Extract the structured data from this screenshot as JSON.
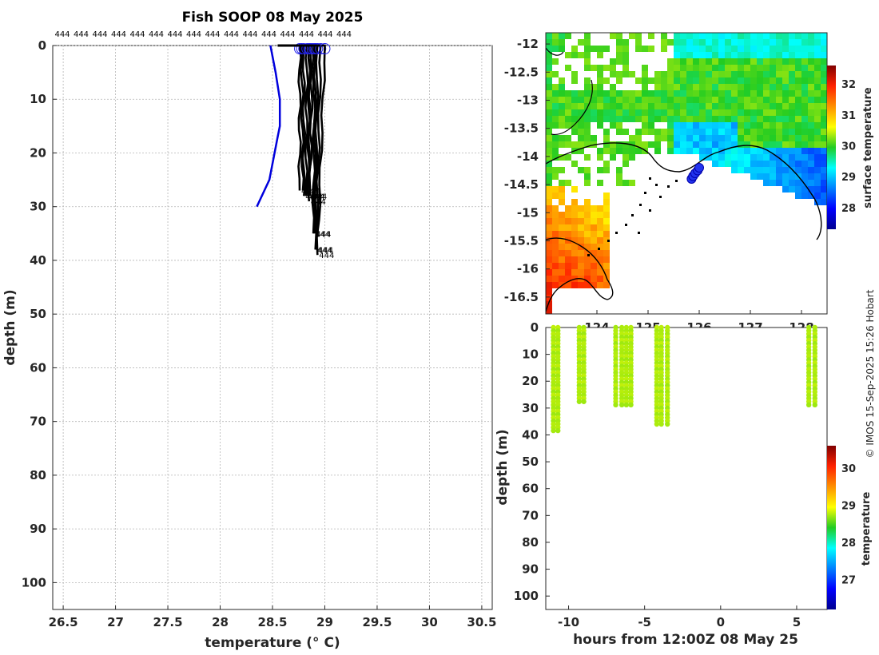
{
  "title": "Fish SOOP 08 May 2025",
  "credit": "© IMOS 15-Sep-2025 15:26 Hobart",
  "profile_label": "444",
  "colors": {
    "profile": "#000000",
    "climatology": "#0000dd",
    "marker": "#2222ee",
    "coast": "#000000"
  },
  "chart_data": [
    {
      "type": "line",
      "name": "temperature-depth profiles",
      "xlabel": "temperature (° C)",
      "ylabel": "depth (m)",
      "xlim": [
        26.4,
        30.6
      ],
      "ylim": [
        105,
        0
      ],
      "xticks": [
        "26.5",
        "27",
        "27.5",
        "28",
        "28.5",
        "29",
        "29.5",
        "30",
        "30.5"
      ],
      "yticks": [
        "0",
        "10",
        "20",
        "30",
        "40",
        "50",
        "60",
        "70",
        "80",
        "90",
        "100"
      ],
      "grid": true,
      "top_labels": [
        "444",
        "444",
        "444",
        "444",
        "444",
        "444",
        "444",
        "444",
        "444",
        "444",
        "444",
        "444",
        "444",
        "444",
        "444",
        "444"
      ],
      "climatology": {
        "temperature": [
          28.48,
          28.53,
          28.57,
          28.57,
          28.55,
          28.52,
          28.47,
          28.35
        ],
        "depth": [
          0,
          5,
          10,
          15,
          17,
          20,
          25,
          30
        ]
      },
      "profiles": [
        {
          "t0": 28.76,
          "tb": 28.76,
          "d": 27
        },
        {
          "t0": 28.78,
          "tb": 28.79,
          "d": 27
        },
        {
          "t0": 28.8,
          "tb": 28.8,
          "d": 28
        },
        {
          "t0": 28.83,
          "tb": 28.82,
          "d": 28
        },
        {
          "t0": 28.85,
          "tb": 28.84,
          "d": 28
        },
        {
          "t0": 28.86,
          "tb": 28.85,
          "d": 29
        },
        {
          "t0": 28.88,
          "tb": 28.86,
          "d": 28
        },
        {
          "t0": 28.9,
          "tb": 28.89,
          "d": 35
        },
        {
          "t0": 28.91,
          "tb": 28.9,
          "d": 35
        },
        {
          "t0": 28.93,
          "tb": 28.91,
          "d": 38
        },
        {
          "t0": 28.96,
          "tb": 28.92,
          "d": 38
        },
        {
          "t0": 29.0,
          "tb": 28.93,
          "d": 39
        }
      ]
    },
    {
      "type": "heatmap",
      "name": "surface temperature map",
      "colorbar_label": "surface temperature",
      "lat_ticks": [
        "-12",
        "-12.5",
        "-13",
        "-13.5",
        "-14",
        "-14.5",
        "-15",
        "-15.5",
        "-16",
        "-16.5"
      ],
      "lon_ticks": [
        "124",
        "125",
        "126",
        "127",
        "128"
      ],
      "lat_range": [
        -16.8,
        -11.8
      ],
      "lon_range": [
        123.0,
        128.5
      ],
      "colorbar_ticks": [
        "28",
        "29",
        "30",
        "31",
        "32"
      ],
      "colorbar_range": [
        27.3,
        32.6
      ],
      "track": {
        "lon": [
          125.85,
          125.88,
          125.92,
          125.97,
          126.0
        ],
        "lat": [
          -14.4,
          -14.35,
          -14.3,
          -14.25,
          -14.2
        ]
      }
    },
    {
      "type": "scatter",
      "name": "temperature section",
      "xlabel": "hours from 12:00Z 08 May 25",
      "ylabel": "depth (m)",
      "xlim": [
        -11.5,
        7
      ],
      "ylim": [
        105,
        0
      ],
      "xticks": [
        "-10",
        "-5",
        "0",
        "5"
      ],
      "yticks": [
        "0",
        "10",
        "20",
        "30",
        "40",
        "50",
        "60",
        "70",
        "80",
        "90",
        "100"
      ],
      "colorbar_label": "temperature",
      "colorbar_ticks": [
        "27",
        "28",
        "29",
        "30"
      ],
      "colorbar_range": [
        26.2,
        30.6
      ],
      "columns": [
        {
          "x": -11.0,
          "d": 39
        },
        {
          "x": -10.7,
          "d": 39
        },
        {
          "x": -9.3,
          "d": 28
        },
        {
          "x": -9.0,
          "d": 28
        },
        {
          "x": -6.9,
          "d": 29
        },
        {
          "x": -6.5,
          "d": 29
        },
        {
          "x": -6.2,
          "d": 29
        },
        {
          "x": -5.9,
          "d": 29
        },
        {
          "x": -4.2,
          "d": 36
        },
        {
          "x": -3.9,
          "d": 36
        },
        {
          "x": -3.5,
          "d": 36
        },
        {
          "x": 5.8,
          "d": 29
        },
        {
          "x": 6.2,
          "d": 29
        }
      ],
      "value": 28.75
    }
  ]
}
